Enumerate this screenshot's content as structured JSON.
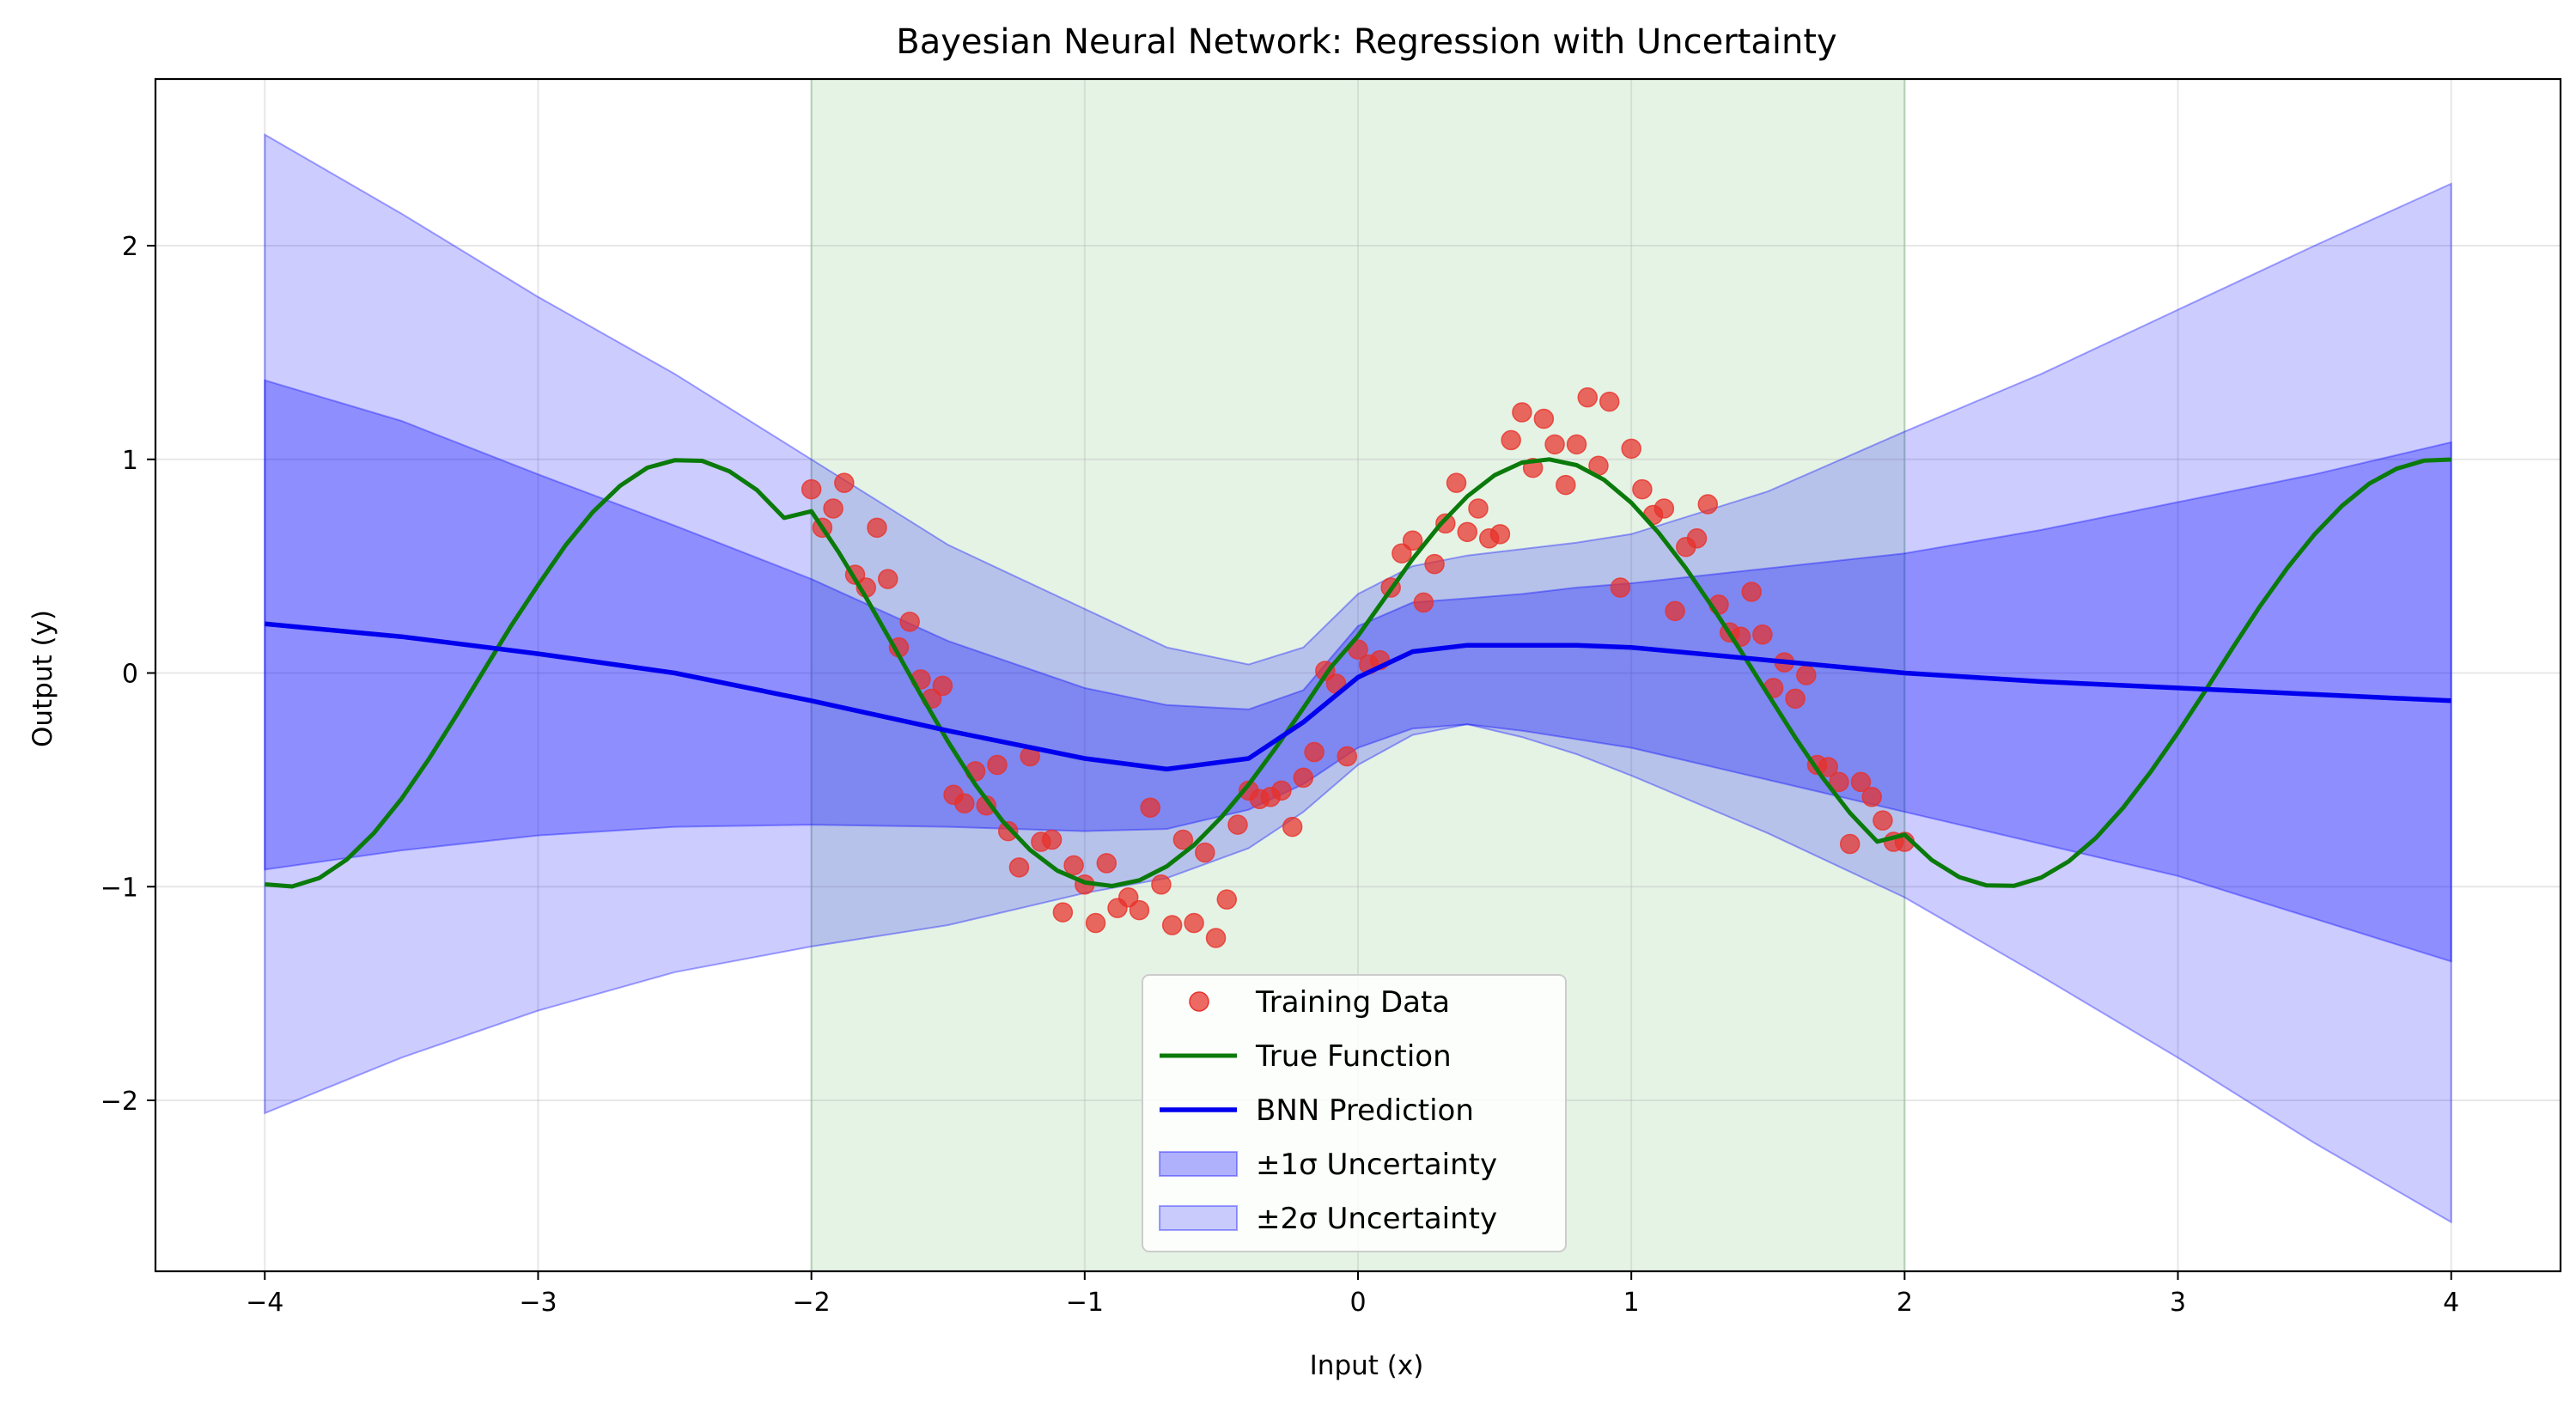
{
  "chart_data": {
    "type": "line",
    "title": "Bayesian Neural Network: Regression with Uncertainty",
    "xlabel": "Input (x)",
    "ylabel": "Output (y)",
    "xlim": [
      -4.4,
      4.4
    ],
    "ylim": [
      -2.8,
      2.78
    ],
    "xticks": [
      -4,
      -3,
      -2,
      -1,
      0,
      1,
      2,
      3,
      4
    ],
    "yticks": [
      -2,
      -1,
      0,
      1,
      2
    ],
    "grid": true,
    "legend_position": "lower-center",
    "training_region": {
      "x_start": -2,
      "x_end": 2,
      "color": "#2ca02c"
    },
    "colors": {
      "training": "#e8312a",
      "true_function": "#0a7a0a",
      "prediction": "#0000ee",
      "band1": "#0000ff",
      "band2": "#0000ff"
    },
    "series": [
      {
        "name": "True Function",
        "kind": "line",
        "x": [
          -4.0,
          -3.9,
          -3.8,
          -3.7,
          -3.6,
          -3.5,
          -3.4,
          -3.3,
          -3.2,
          -3.1,
          -3.0,
          -2.9,
          -2.8,
          -2.7,
          -2.6,
          -2.5,
          -2.4,
          -2.3,
          -2.2,
          -2.1,
          -2.0,
          -1.9,
          -1.8,
          -1.7,
          -1.6,
          -1.5,
          -1.4,
          -1.3,
          -1.2,
          -1.1,
          -1.0,
          -0.9,
          -0.8,
          -0.7,
          -0.6,
          -0.5,
          -0.4,
          -0.3,
          -0.2,
          -0.1,
          0.0,
          0.1,
          0.2,
          0.3,
          0.4,
          0.5,
          0.6,
          0.7,
          0.8,
          0.9,
          1.0,
          1.1,
          1.2,
          1.3,
          1.4,
          1.5,
          1.6,
          1.7,
          1.8,
          1.9,
          2.0,
          2.1,
          2.2,
          2.3,
          2.4,
          2.5,
          2.6,
          2.7,
          2.8,
          2.9,
          3.0,
          3.1,
          3.2,
          3.3,
          3.4,
          3.5,
          3.6,
          3.7,
          3.8,
          3.9,
          4.0
        ],
        "y": [
          -0.989,
          -0.999,
          -0.959,
          -0.873,
          -0.748,
          -0.589,
          -0.403,
          -0.201,
          0.009,
          0.218,
          0.412,
          0.597,
          0.753,
          0.876,
          0.961,
          0.996,
          0.993,
          0.944,
          0.857,
          0.726,
          0.757,
          0.565,
          0.353,
          0.128,
          -0.101,
          -0.321,
          -0.522,
          -0.694,
          -0.828,
          -0.925,
          -0.98,
          -0.997,
          -0.97,
          -0.905,
          -0.805,
          -0.675,
          -0.522,
          -0.349,
          -0.164,
          0.026,
          0.174,
          0.354,
          0.534,
          0.694,
          0.827,
          0.926,
          0.985,
          1.0,
          0.973,
          0.904,
          0.797,
          0.656,
          0.49,
          0.303,
          0.104,
          -0.1,
          -0.302,
          -0.49,
          -0.655,
          -0.789,
          -0.757,
          -0.876,
          -0.955,
          -0.994,
          -0.996,
          -0.957,
          -0.882,
          -0.772,
          -0.63,
          -0.463,
          -0.279,
          -0.083,
          0.117,
          0.312,
          0.491,
          0.649,
          0.782,
          0.886,
          0.956,
          0.994,
          0.999
        ]
      },
      {
        "name": "BNN Prediction",
        "kind": "line",
        "x": [
          -4.0,
          -3.5,
          -3.0,
          -2.5,
          -2.0,
          -1.5,
          -1.0,
          -0.7,
          -0.4,
          -0.2,
          0.0,
          0.2,
          0.4,
          0.6,
          0.8,
          1.0,
          1.5,
          2.0,
          2.5,
          3.0,
          3.5,
          4.0
        ],
        "y": [
          0.23,
          0.17,
          0.09,
          0.0,
          -0.13,
          -0.27,
          -0.4,
          -0.45,
          -0.4,
          -0.23,
          -0.02,
          0.1,
          0.13,
          0.13,
          0.13,
          0.12,
          0.06,
          0.0,
          -0.04,
          -0.07,
          -0.1,
          -0.13
        ]
      },
      {
        "name": "±1σ Uncertainty",
        "kind": "band",
        "x": [
          -4.0,
          -3.5,
          -3.0,
          -2.5,
          -2.0,
          -1.5,
          -1.0,
          -0.7,
          -0.4,
          -0.2,
          0.0,
          0.2,
          0.4,
          0.6,
          0.8,
          1.0,
          1.5,
          2.0,
          2.5,
          3.0,
          3.5,
          4.0
        ],
        "lower": [
          -0.92,
          -0.83,
          -0.76,
          -0.72,
          -0.71,
          -0.72,
          -0.74,
          -0.73,
          -0.64,
          -0.52,
          -0.35,
          -0.26,
          -0.24,
          -0.27,
          -0.31,
          -0.35,
          -0.5,
          -0.65,
          -0.8,
          -0.95,
          -1.15,
          -1.35
        ],
        "upper": [
          1.37,
          1.18,
          0.93,
          0.69,
          0.44,
          0.15,
          -0.07,
          -0.15,
          -0.17,
          -0.08,
          0.22,
          0.33,
          0.35,
          0.37,
          0.4,
          0.42,
          0.49,
          0.56,
          0.67,
          0.8,
          0.93,
          1.08
        ]
      },
      {
        "name": "±2σ Uncertainty",
        "kind": "band",
        "x": [
          -4.0,
          -3.5,
          -3.0,
          -2.5,
          -2.0,
          -1.5,
          -1.0,
          -0.7,
          -0.4,
          -0.2,
          0.0,
          0.2,
          0.4,
          0.6,
          0.8,
          1.0,
          1.5,
          2.0,
          2.5,
          3.0,
          3.5,
          4.0
        ],
        "lower": [
          -2.06,
          -1.8,
          -1.58,
          -1.4,
          -1.28,
          -1.18,
          -1.03,
          -0.96,
          -0.82,
          -0.65,
          -0.43,
          -0.29,
          -0.24,
          -0.3,
          -0.38,
          -0.48,
          -0.75,
          -1.05,
          -1.42,
          -1.8,
          -2.2,
          -2.57
        ],
        "upper": [
          2.52,
          2.15,
          1.76,
          1.4,
          1.0,
          0.6,
          0.3,
          0.12,
          0.04,
          0.12,
          0.37,
          0.5,
          0.55,
          0.58,
          0.61,
          0.65,
          0.85,
          1.13,
          1.4,
          1.7,
          2.0,
          2.29
        ]
      },
      {
        "name": "Training Data",
        "kind": "scatter",
        "x": [
          -2.0,
          -1.96,
          -1.92,
          -1.88,
          -1.84,
          -1.8,
          -1.76,
          -1.72,
          -1.68,
          -1.64,
          -1.6,
          -1.56,
          -1.52,
          -1.48,
          -1.44,
          -1.4,
          -1.36,
          -1.32,
          -1.28,
          -1.24,
          -1.2,
          -1.16,
          -1.12,
          -1.08,
          -1.04,
          -1.0,
          -0.96,
          -0.92,
          -0.88,
          -0.84,
          -0.8,
          -0.76,
          -0.72,
          -0.68,
          -0.64,
          -0.6,
          -0.56,
          -0.52,
          -0.48,
          -0.44,
          -0.4,
          -0.36,
          -0.32,
          -0.28,
          -0.24,
          -0.2,
          -0.16,
          -0.12,
          -0.08,
          -0.04,
          0.0,
          0.04,
          0.08,
          0.12,
          0.16,
          0.2,
          0.24,
          0.28,
          0.32,
          0.36,
          0.4,
          0.44,
          0.48,
          0.52,
          0.56,
          0.6,
          0.64,
          0.68,
          0.72,
          0.76,
          0.8,
          0.84,
          0.88,
          0.92,
          0.96,
          1.0,
          1.04,
          1.08,
          1.12,
          1.16,
          1.2,
          1.24,
          1.28,
          1.32,
          1.36,
          1.4,
          1.44,
          1.48,
          1.52,
          1.56,
          1.6,
          1.64,
          1.68,
          1.72,
          1.76,
          1.8,
          1.84,
          1.88,
          1.92,
          1.96,
          2.0
        ],
        "y": [
          0.86,
          0.68,
          0.77,
          0.89,
          0.46,
          0.4,
          0.68,
          0.44,
          0.12,
          0.24,
          -0.03,
          -0.12,
          -0.06,
          -0.57,
          -0.61,
          -0.46,
          -0.62,
          -0.43,
          -0.74,
          -0.91,
          -0.39,
          -0.79,
          -0.78,
          -1.12,
          -0.9,
          -0.99,
          -1.17,
          -0.89,
          -1.1,
          -1.05,
          -1.11,
          -0.63,
          -0.99,
          -1.18,
          -0.78,
          -1.17,
          -0.84,
          -1.24,
          -1.06,
          -0.71,
          -0.55,
          -0.59,
          -0.58,
          -0.55,
          -0.72,
          -0.49,
          -0.37,
          0.01,
          -0.05,
          -0.39,
          0.11,
          0.04,
          0.06,
          0.4,
          0.56,
          0.62,
          0.33,
          0.51,
          0.7,
          0.89,
          0.66,
          0.77,
          0.63,
          0.65,
          1.09,
          1.22,
          0.96,
          1.19,
          1.07,
          0.88,
          1.07,
          1.29,
          0.97,
          1.27,
          0.4,
          1.05,
          0.86,
          0.74,
          0.77,
          0.29,
          0.59,
          0.63,
          0.79,
          0.32,
          0.19,
          0.17,
          0.38,
          0.18,
          -0.07,
          0.05,
          -0.12,
          -0.01,
          -0.43,
          -0.44,
          -0.51,
          -0.8,
          -0.51,
          -0.58,
          -0.69,
          -0.79,
          -0.79
        ]
      }
    ],
    "legend": [
      {
        "label": "Training Data",
        "symbol": "marker"
      },
      {
        "label": "True Function",
        "symbol": "line-green"
      },
      {
        "label": "BNN Prediction",
        "symbol": "line-blue"
      },
      {
        "label": "±1σ Uncertainty",
        "symbol": "patch-1"
      },
      {
        "label": "±2σ Uncertainty",
        "symbol": "patch-2"
      }
    ]
  }
}
